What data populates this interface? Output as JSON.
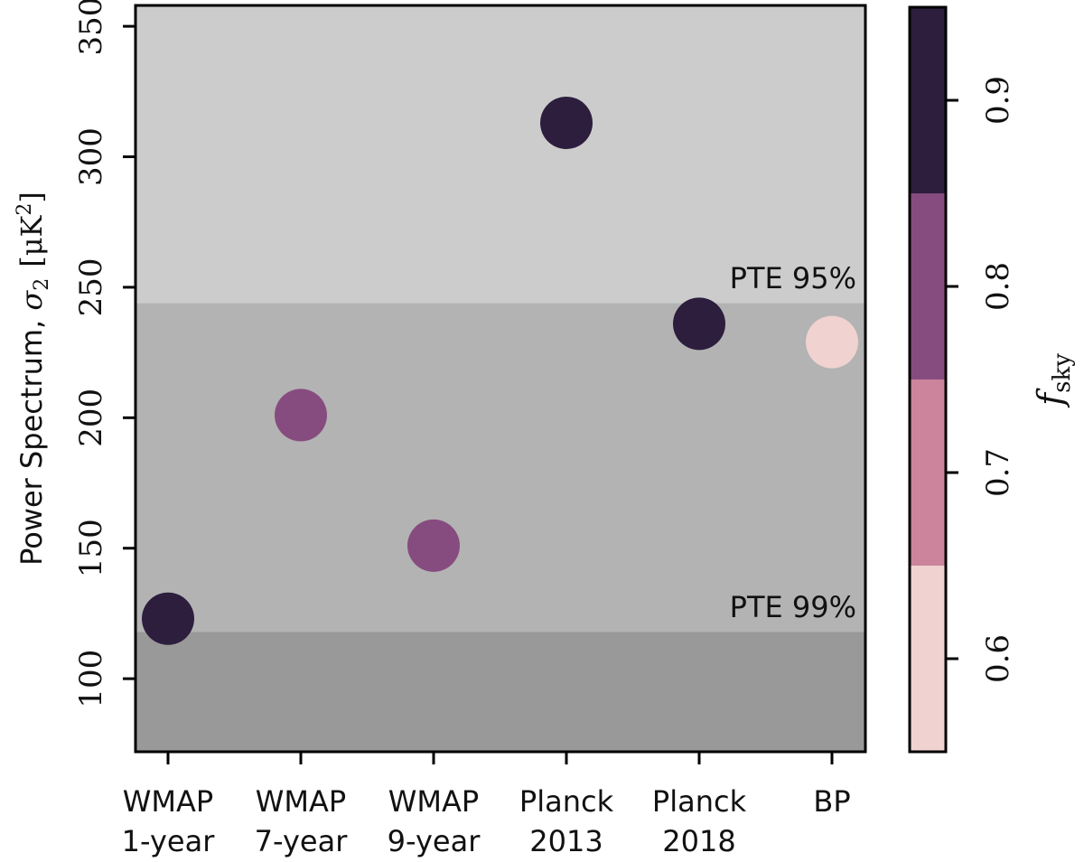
{
  "chart_data": {
    "type": "scatter",
    "title": "",
    "ylabel_text": "Power Spectrum, ",
    "ylabel_symbol": "σ",
    "ylabel_sub": "2",
    "ylabel_unit": "[μK",
    "ylabel_unit_sup": "2",
    "ylabel_unit_close": "]",
    "ylim": [
      72,
      358
    ],
    "yticks": [
      "100",
      "150",
      "200",
      "250",
      "300",
      "350"
    ],
    "ytick_values": [
      100,
      150,
      200,
      250,
      300,
      350
    ],
    "categories": [
      [
        "WMAP",
        "1-year"
      ],
      [
        "WMAP",
        "7-year"
      ],
      [
        "WMAP",
        "9-year"
      ],
      [
        "Planck",
        "2013"
      ],
      [
        "Planck",
        "2018"
      ],
      [
        "BP",
        ""
      ]
    ],
    "values": [
      123,
      201,
      151,
      313,
      236,
      229
    ],
    "fsky": [
      0.9,
      0.8,
      0.8,
      0.9,
      0.9,
      0.6
    ],
    "bands": [
      {
        "from": 72,
        "to": 118,
        "color": "#999999"
      },
      {
        "from": 118,
        "to": 244,
        "color": "#b3b3b3"
      },
      {
        "from": 244,
        "to": 358,
        "color": "#cccccc"
      }
    ],
    "annotations": [
      {
        "text": "PTE 95%",
        "y": 244
      },
      {
        "text": "PTE 99%",
        "y": 118
      }
    ],
    "colorbar": {
      "label_symbol": "f",
      "label_sub": "sky",
      "range": [
        0.55,
        0.95
      ],
      "ticks": [
        "0.6",
        "0.7",
        "0.8",
        "0.9"
      ],
      "tick_values": [
        0.6,
        0.7,
        0.8,
        0.9
      ],
      "levels": [
        {
          "from": 0.55,
          "to": 0.65,
          "color": "#f0d3d0"
        },
        {
          "from": 0.65,
          "to": 0.75,
          "color": "#cb849c"
        },
        {
          "from": 0.75,
          "to": 0.85,
          "color": "#874c7f"
        },
        {
          "from": 0.85,
          "to": 0.95,
          "color": "#2d1e3e"
        }
      ]
    }
  }
}
